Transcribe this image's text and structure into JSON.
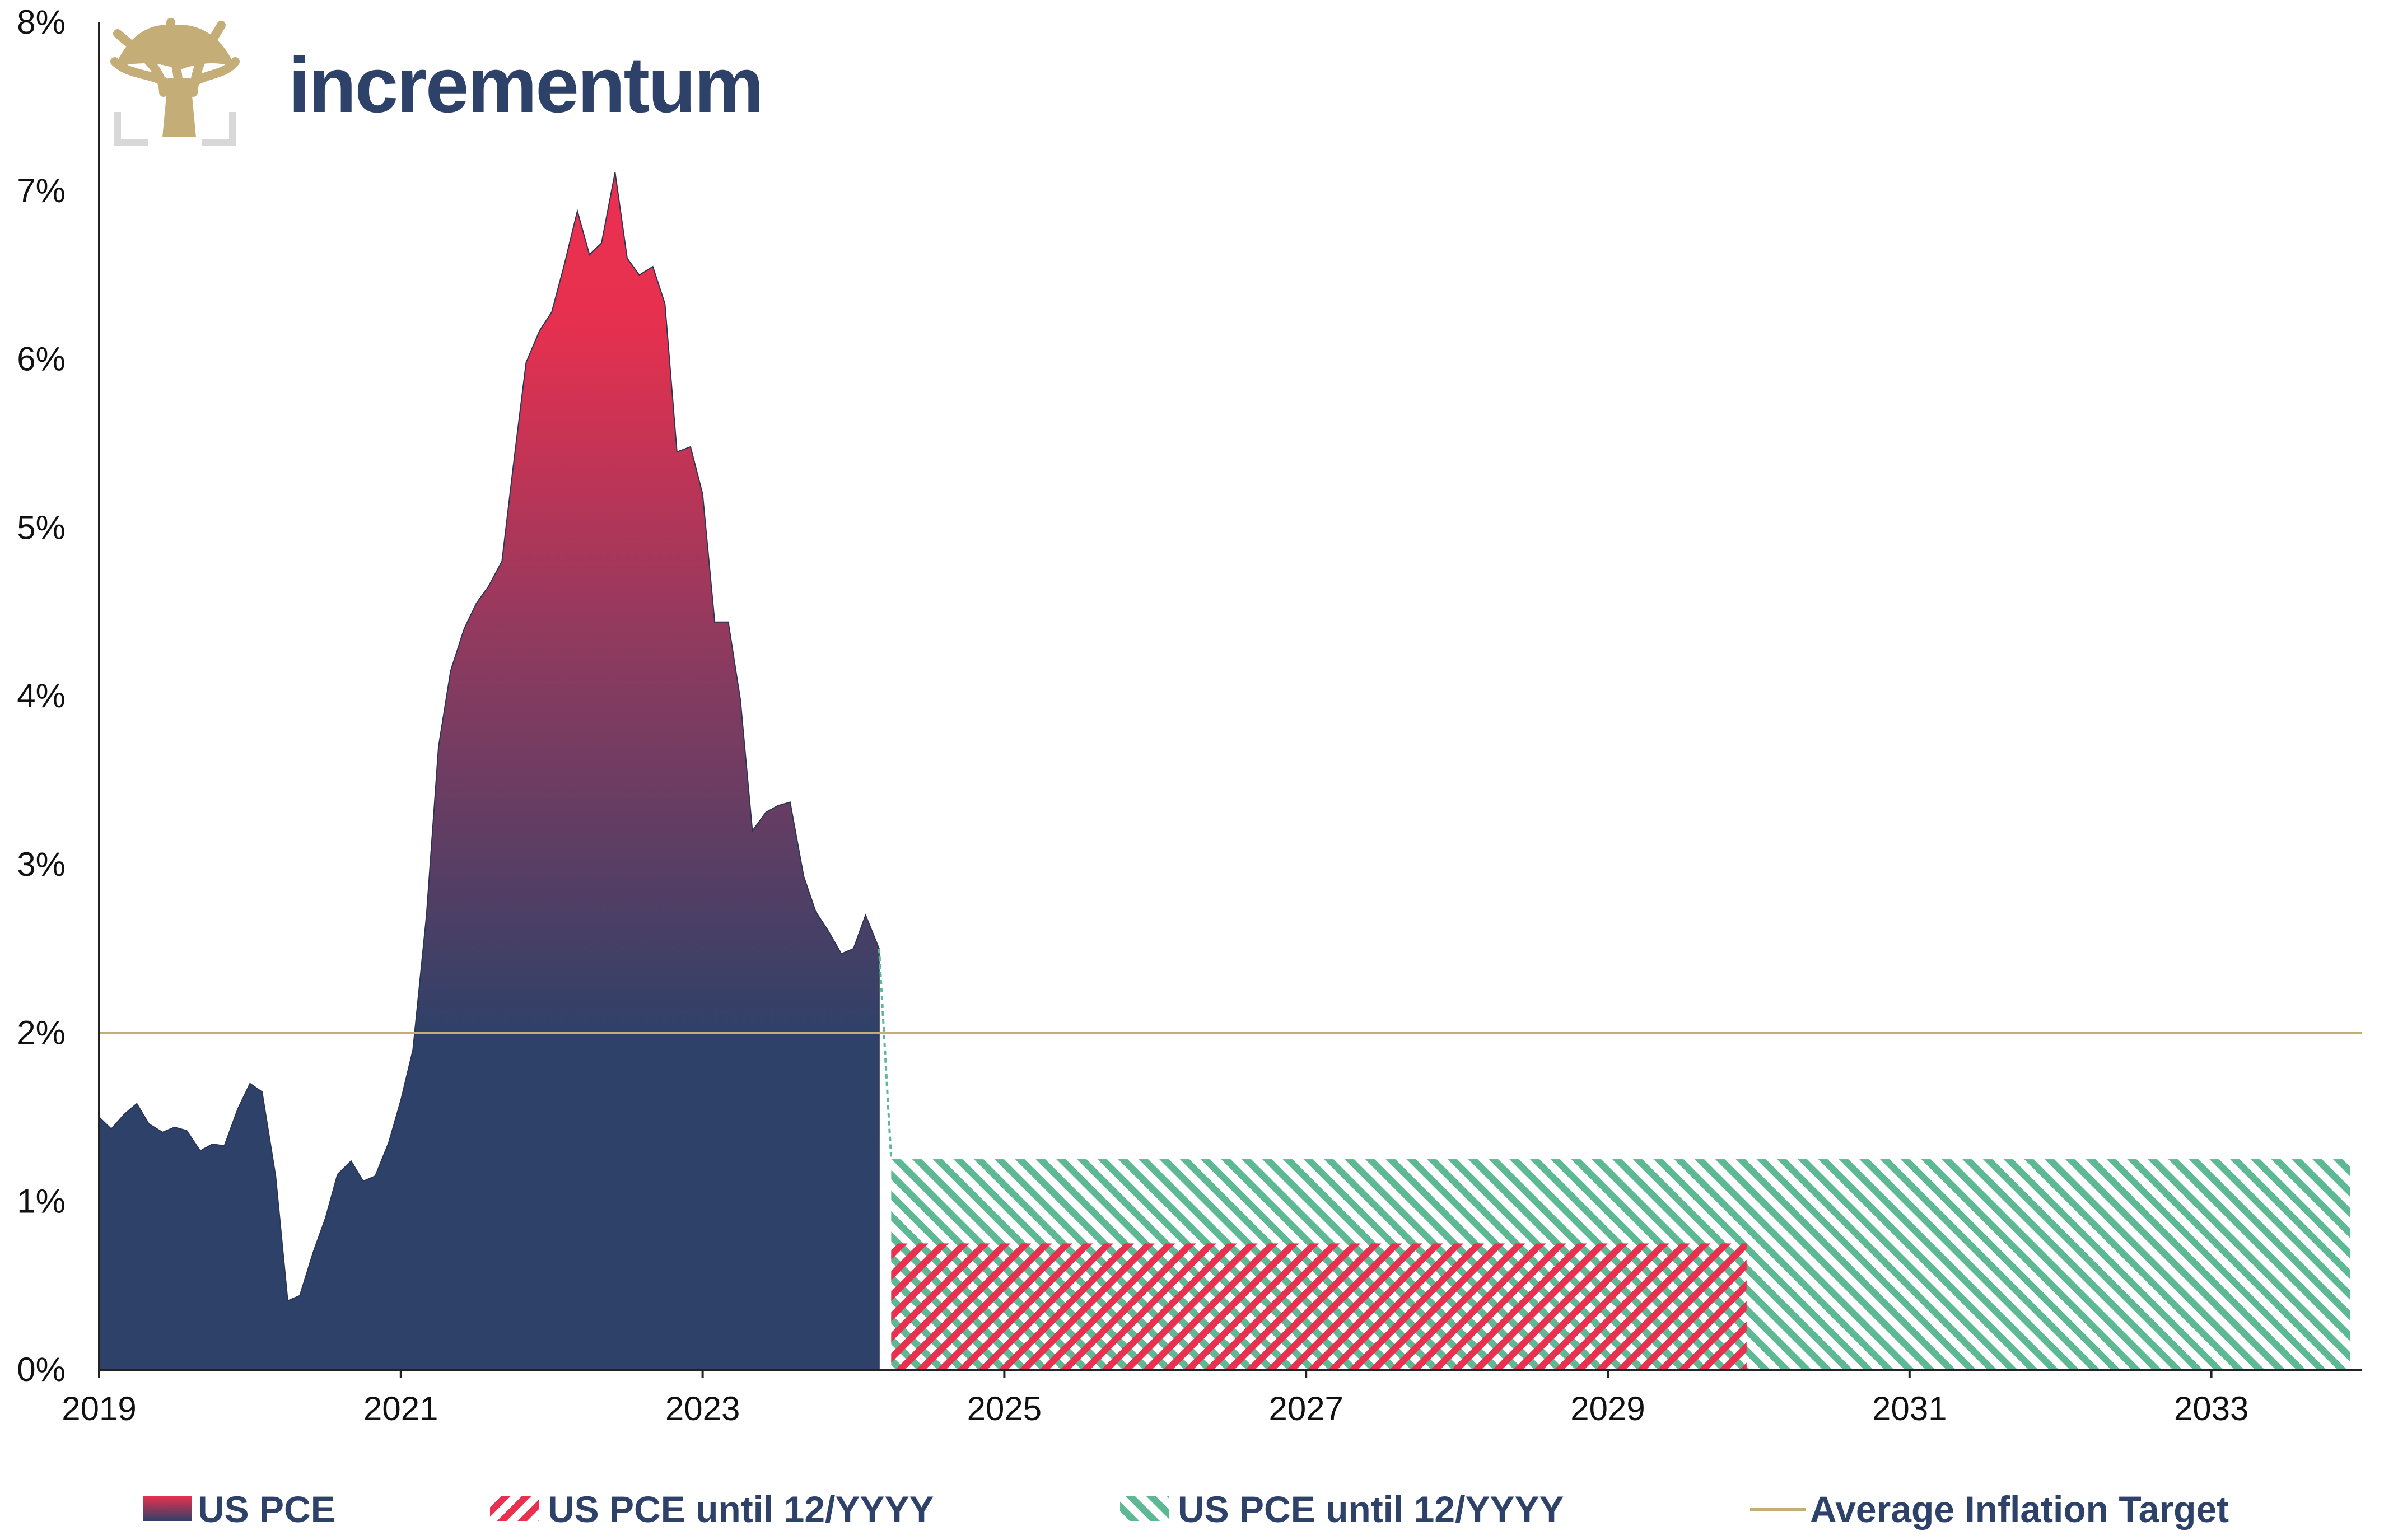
{
  "brand": {
    "name": "incrementum",
    "logo": "tree-logo"
  },
  "chart_data": {
    "type": "area",
    "title": "",
    "xlabel": "",
    "ylabel": "",
    "xlim": [
      2019.0,
      2034.0
    ],
    "ylim": [
      0,
      8
    ],
    "grid": false,
    "x_ticks": [
      "2019",
      "2021",
      "2023",
      "2025",
      "2027",
      "2029",
      "2031",
      "2033"
    ],
    "y_ticks": [
      "0%",
      "1%",
      "2%",
      "3%",
      "4%",
      "5%",
      "6%",
      "7%",
      "8%"
    ],
    "legend_position": "bottom",
    "series": [
      {
        "name": "US PCE",
        "kind": "area",
        "x": [
          2019.0,
          2019.08,
          2019.17,
          2019.25,
          2019.33,
          2019.42,
          2019.5,
          2019.58,
          2019.67,
          2019.75,
          2019.83,
          2019.92,
          2020.0,
          2020.08,
          2020.17,
          2020.25,
          2020.33,
          2020.42,
          2020.5,
          2020.58,
          2020.67,
          2020.75,
          2020.83,
          2020.92,
          2021.0,
          2021.08,
          2021.17,
          2021.25,
          2021.33,
          2021.42,
          2021.5,
          2021.58,
          2021.67,
          2021.75,
          2021.83,
          2021.92,
          2022.0,
          2022.08,
          2022.17,
          2022.25,
          2022.33,
          2022.42,
          2022.5,
          2022.58,
          2022.67,
          2022.75,
          2022.83,
          2022.92,
          2023.0,
          2023.08,
          2023.17,
          2023.25,
          2023.33,
          2023.42,
          2023.5,
          2023.58,
          2023.67,
          2023.75,
          2023.83,
          2023.92,
          2024.0,
          2024.08,
          2024.17
        ],
        "values": [
          1.5,
          1.43,
          1.52,
          1.58,
          1.46,
          1.41,
          1.44,
          1.42,
          1.3,
          1.34,
          1.33,
          1.55,
          1.7,
          1.65,
          1.15,
          0.41,
          0.44,
          0.7,
          0.9,
          1.16,
          1.24,
          1.12,
          1.15,
          1.35,
          1.6,
          1.9,
          2.7,
          3.7,
          4.15,
          4.4,
          4.55,
          4.65,
          4.8,
          5.4,
          5.98,
          6.17,
          6.28,
          6.55,
          6.88,
          6.62,
          6.69,
          7.11,
          6.6,
          6.5,
          6.55,
          6.33,
          5.45,
          5.48,
          5.2,
          4.44,
          4.44,
          3.98,
          3.2,
          3.31,
          3.35,
          3.37,
          2.93,
          2.72,
          2.61,
          2.47,
          2.5,
          2.7,
          2.5
        ],
        "color_top": "#e8304f",
        "color_bottom": "#2e4168"
      },
      {
        "name": "US PCE until 12/YYYY",
        "kind": "hatched-bar",
        "x_start": 2024.25,
        "x_end": 2029.92,
        "value": 0.75,
        "color": "#e8304f"
      },
      {
        "name": "US PCE until 12/YYYY",
        "kind": "hatched-bar",
        "x_start": 2024.25,
        "x_end": 2033.92,
        "value": 1.25,
        "color": "#5db894"
      },
      {
        "name": "Average Inflation Target",
        "kind": "line",
        "value": 2.0,
        "color": "#c5ad78"
      }
    ]
  },
  "legend": [
    {
      "label": "US PCE",
      "swatch": "gradient"
    },
    {
      "label": "US PCE until 12/YYYY",
      "swatch": "red-hatch"
    },
    {
      "label": "US PCE until 12/YYYY",
      "swatch": "green-hatch"
    },
    {
      "label": "Average Inflation Target",
      "swatch": "line"
    }
  ]
}
